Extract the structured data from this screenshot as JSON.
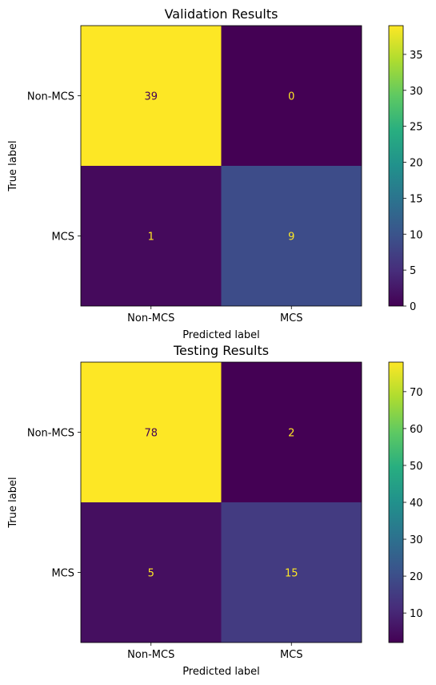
{
  "chart_data": [
    {
      "type": "heatmap",
      "title": "Validation Results",
      "xlabel": "Predicted label",
      "ylabel": "True label",
      "x_categories": [
        "Non-MCS",
        "MCS"
      ],
      "y_categories": [
        "Non-MCS",
        "MCS"
      ],
      "values": [
        [
          39,
          0
        ],
        [
          1,
          9
        ]
      ],
      "colormap": "viridis",
      "colorbar": {
        "range": [
          0,
          39
        ],
        "ticks": [
          0,
          5,
          10,
          15,
          20,
          25,
          30,
          35
        ]
      }
    },
    {
      "type": "heatmap",
      "title": "Testing Results",
      "xlabel": "Predicted label",
      "ylabel": "True label",
      "x_categories": [
        "Non-MCS",
        "MCS"
      ],
      "y_categories": [
        "Non-MCS",
        "MCS"
      ],
      "values": [
        [
          78,
          2
        ],
        [
          5,
          15
        ]
      ],
      "colormap": "viridis",
      "colorbar": {
        "range": [
          2,
          78
        ],
        "ticks": [
          10,
          20,
          30,
          40,
          50,
          60,
          70
        ]
      }
    }
  ]
}
